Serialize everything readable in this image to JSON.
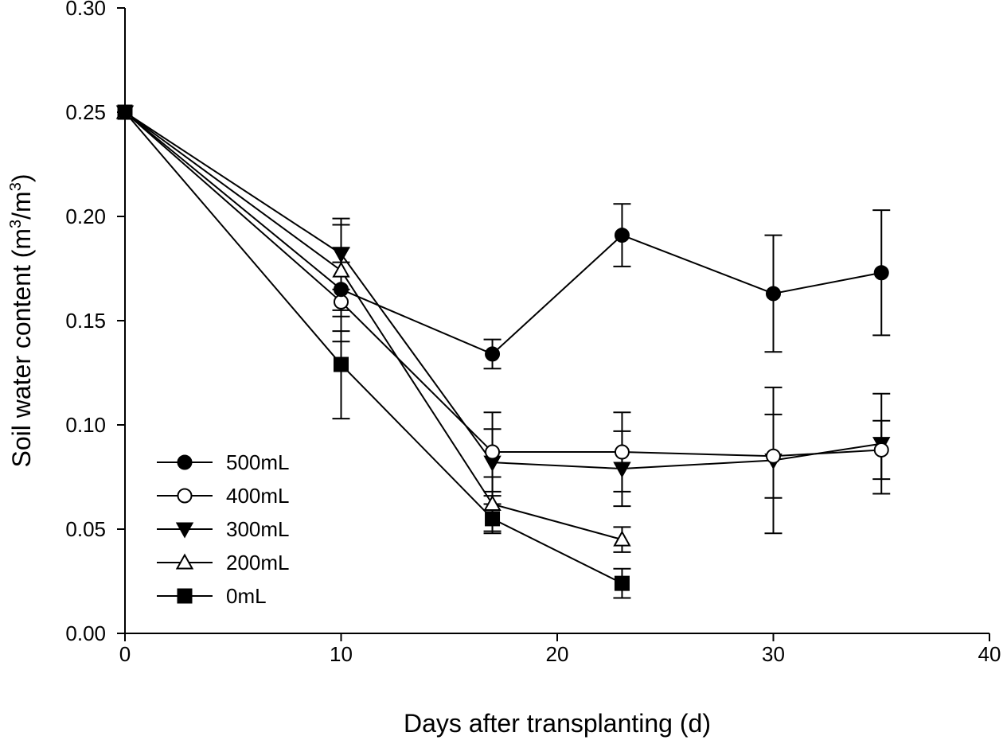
{
  "chart_data": {
    "type": "line",
    "xlabel": "Days after transplanting (d)",
    "ylabel_main": "Soil water content (m",
    "ylabel_exp1": "3",
    "ylabel_mid": "/m",
    "ylabel_exp2": "3",
    "ylabel_end": ")",
    "xlim": [
      0,
      40
    ],
    "ylim": [
      0,
      0.3
    ],
    "xticks": [
      "0",
      "10",
      "20",
      "30",
      "40"
    ],
    "yticks": [
      "0.00",
      "0.05",
      "0.10",
      "0.15",
      "0.20",
      "0.25",
      "0.30"
    ],
    "grid": false,
    "legend_position": "bottom-left",
    "series": [
      {
        "name": "500mL",
        "marker": "circle",
        "filled": true,
        "x": [
          0,
          10,
          17,
          23,
          30,
          35
        ],
        "y": [
          0.25,
          0.165,
          0.134,
          0.191,
          0.163,
          0.173
        ],
        "err": [
          0,
          0.02,
          0.007,
          0.015,
          0.028,
          0.03
        ]
      },
      {
        "name": "400mL",
        "marker": "circle",
        "filled": false,
        "x": [
          0,
          10,
          17,
          23,
          30,
          35
        ],
        "y": [
          0.25,
          0.159,
          0.087,
          0.087,
          0.085,
          0.088
        ],
        "err": [
          0,
          0.019,
          0.019,
          0.019,
          0.02,
          0.014
        ]
      },
      {
        "name": "300mL",
        "marker": "triangle-down",
        "filled": true,
        "x": [
          0,
          10,
          17,
          23,
          30,
          35
        ],
        "y": [
          0.25,
          0.182,
          0.082,
          0.079,
          0.083,
          0.091
        ],
        "err": [
          0,
          0.017,
          0.016,
          0.018,
          0.035,
          0.024
        ]
      },
      {
        "name": "200mL",
        "marker": "triangle-up",
        "filled": false,
        "x": [
          0,
          10,
          17,
          23
        ],
        "y": [
          0.25,
          0.174,
          0.062,
          0.045
        ],
        "err": [
          0,
          0.022,
          0.013,
          0.006
        ]
      },
      {
        "name": "0mL",
        "marker": "square",
        "filled": true,
        "x": [
          0,
          10,
          17,
          23
        ],
        "y": [
          0.25,
          0.129,
          0.055,
          0.024
        ],
        "err": [
          0,
          0.026,
          0.007,
          0.007
        ]
      }
    ]
  }
}
